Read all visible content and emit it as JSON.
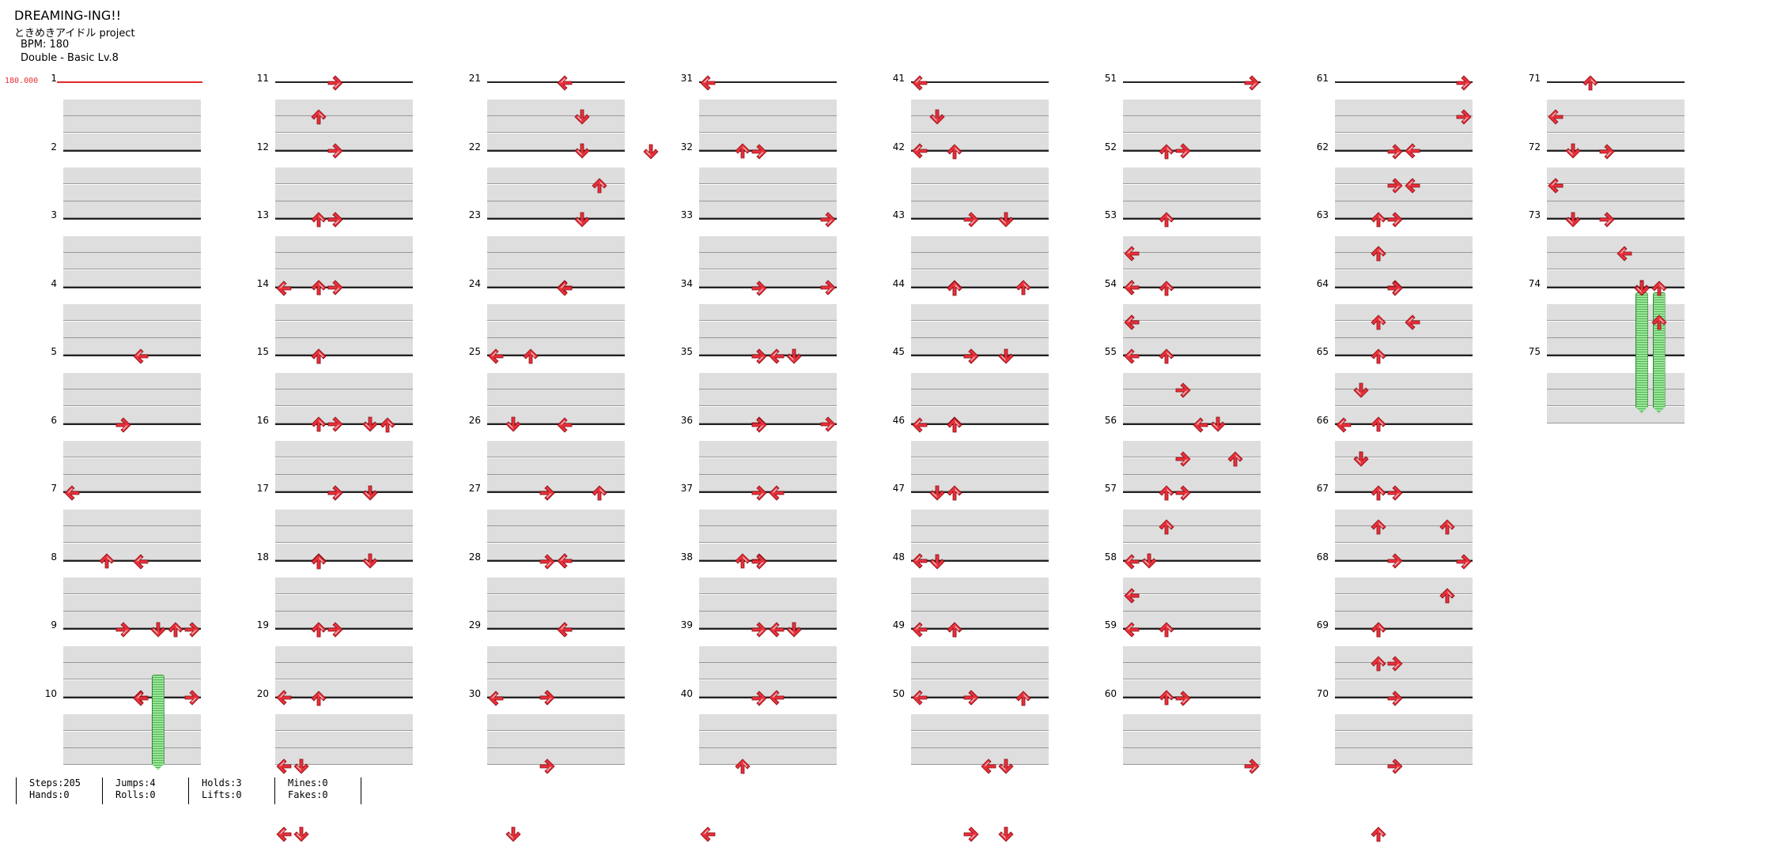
{
  "song": {
    "title": "DREAMING-ING!!",
    "artist": "ときめきアイドル project",
    "bpm_label": "BPM: 180",
    "chart_label": "Double - Basic  Lv.8",
    "bpm_marker": "180.000"
  },
  "colors": {
    "arrow": "#e8303a",
    "hold": "#9ae89a"
  },
  "measure_count": 75,
  "steps": [
    [
      11,
      0,
      3
    ],
    [
      11,
      2,
      2
    ],
    [
      11,
      4,
      3
    ],
    [
      11,
      8,
      2
    ],
    [
      11,
      8,
      3
    ],
    [
      11,
      12,
      2
    ],
    [
      11,
      12,
      3
    ],
    [
      21,
      0,
      4
    ],
    [
      21,
      2,
      5
    ],
    [
      21,
      4,
      5
    ],
    [
      21,
      6,
      6
    ],
    [
      22,
      0,
      9
    ],
    [
      31,
      0,
      0
    ],
    [
      31,
      4,
      2
    ],
    [
      32,
      0,
      3
    ],
    [
      32,
      12,
      4
    ],
    [
      33,
      0,
      7
    ],
    [
      33,
      4,
      7
    ],
    [
      33,
      8,
      3
    ],
    [
      34,
      0,
      3
    ],
    [
      34,
      4,
      3
    ],
    [
      34,
      8,
      7
    ],
    [
      41,
      0,
      0
    ],
    [
      41,
      2,
      1
    ],
    [
      41,
      4,
      0
    ],
    [
      42,
      0,
      2
    ],
    [
      42,
      4,
      3
    ],
    [
      42,
      8,
      2
    ],
    [
      43,
      0,
      5
    ],
    [
      43,
      4,
      6
    ],
    [
      43,
      8,
      5
    ],
    [
      44,
      0,
      2
    ],
    [
      44,
      4,
      3
    ],
    [
      44,
      8,
      2
    ],
    [
      45,
      0,
      3
    ],
    [
      45,
      4,
      2
    ],
    [
      45,
      8,
      1
    ],
    [
      45,
      12,
      0
    ],
    [
      46,
      0,
      0
    ],
    [
      46,
      0,
      2
    ],
    [
      47,
      0,
      2
    ],
    [
      47,
      4,
      0
    ],
    [
      47,
      8,
      0
    ],
    [
      47,
      12,
      0
    ],
    [
      48,
      0,
      1
    ],
    [
      48,
      4,
      2
    ],
    [
      48,
      8,
      3
    ],
    [
      49,
      0,
      2
    ],
    [
      49,
      4,
      3
    ],
    [
      49,
      8,
      4
    ],
    [
      49,
      12,
      5
    ],
    [
      50,
      0,
      6
    ],
    [
      50,
      4,
      5
    ],
    [
      50,
      8,
      3
    ],
    [
      51,
      0,
      7
    ],
    [
      51,
      4,
      3
    ],
    [
      52,
      0,
      2
    ],
    [
      52,
      8,
      0
    ],
    [
      53,
      0,
      2
    ],
    [
      53,
      2,
      0
    ],
    [
      53,
      4,
      0
    ],
    [
      53,
      6,
      0
    ],
    [
      54,
      0,
      2
    ],
    [
      54,
      2,
      0
    ],
    [
      54,
      4,
      0
    ],
    [
      55,
      0,
      2
    ],
    [
      55,
      2,
      3
    ],
    [
      55,
      4,
      5
    ],
    [
      55,
      6,
      6
    ],
    [
      56,
      0,
      4
    ],
    [
      56,
      2,
      3
    ],
    [
      56,
      4,
      2
    ],
    [
      57,
      0,
      3
    ],
    [
      57,
      2,
      2
    ],
    [
      57,
      4,
      1
    ],
    [
      57,
      6,
      0
    ],
    [
      58,
      0,
      0
    ],
    [
      58,
      2,
      0
    ],
    [
      58,
      4,
      2
    ],
    [
      59,
      0,
      0
    ],
    [
      59,
      4,
      2
    ],
    [
      60,
      0,
      3
    ],
    [
      60,
      4,
      7
    ],
    [
      61,
      0,
      7
    ],
    [
      61,
      2,
      7
    ],
    [
      61,
      4,
      4
    ],
    [
      61,
      6,
      4
    ],
    [
      62,
      0,
      3
    ],
    [
      62,
      2,
      3
    ],
    [
      62,
      4,
      2
    ],
    [
      62,
      6,
      2
    ],
    [
      63,
      0,
      3
    ],
    [
      63,
      2,
      2
    ],
    [
      63,
      4,
      3
    ],
    [
      63,
      6,
      4
    ],
    [
      64,
      0,
      3
    ],
    [
      64,
      2,
      2
    ],
    [
      65,
      0,
      2
    ],
    [
      65,
      2,
      1
    ],
    [
      65,
      4,
      2
    ],
    [
      65,
      6,
      1
    ],
    [
      66,
      0,
      0
    ],
    [
      66,
      2,
      1
    ],
    [
      66,
      4,
      3
    ],
    [
      66,
      6,
      2
    ],
    [
      67,
      0,
      2
    ],
    [
      67,
      2,
      6
    ],
    [
      67,
      4,
      3
    ],
    [
      67,
      6,
      6
    ],
    [
      68,
      0,
      7
    ],
    [
      68,
      2,
      6
    ],
    [
      68,
      4,
      2
    ],
    [
      68,
      6,
      3
    ],
    [
      69,
      0,
      2
    ],
    [
      69,
      2,
      2
    ],
    [
      70,
      0,
      3
    ],
    [
      70,
      4,
      3
    ],
    [
      70,
      8,
      2
    ],
    [
      71,
      0,
      2
    ],
    [
      71,
      2,
      0
    ],
    [
      71,
      4,
      1
    ],
    [
      71,
      6,
      0
    ],
    [
      72,
      0,
      3
    ],
    [
      72,
      2,
      0
    ],
    [
      72,
      4,
      1
    ],
    [
      73,
      0,
      3
    ],
    [
      73,
      2,
      4
    ],
    [
      73,
      4,
      5
    ],
    [
      73,
      6,
      6
    ],
    [
      5,
      0,
      4
    ],
    [
      6,
      0,
      3
    ],
    [
      7,
      0,
      0
    ],
    [
      7,
      4,
      2
    ],
    [
      7,
      8,
      3
    ],
    [
      8,
      0,
      4
    ],
    [
      8,
      4,
      6
    ],
    [
      8,
      8,
      7
    ],
    [
      9,
      0,
      7
    ],
    [
      9,
      4,
      4
    ],
    [
      10,
      0,
      4
    ],
    [
      10,
      -4,
      5
    ],
    [
      13,
      0,
      3
    ],
    [
      13,
      4,
      2
    ],
    [
      13,
      8,
      2
    ],
    [
      13,
      12,
      2
    ],
    [
      14,
      0,
      0
    ],
    [
      14,
      4,
      2
    ],
    [
      14,
      8,
      3
    ],
    [
      15,
      0,
      2
    ],
    [
      15,
      4,
      5
    ],
    [
      15,
      8,
      3
    ],
    [
      15,
      12,
      5
    ],
    [
      16,
      0,
      6
    ],
    [
      16,
      4,
      5
    ],
    [
      16,
      8,
      2
    ],
    [
      17,
      0,
      3
    ],
    [
      17,
      4,
      2
    ],
    [
      17,
      8,
      3
    ],
    [
      18,
      0,
      2
    ],
    [
      18,
      4,
      2
    ],
    [
      19,
      0,
      2
    ],
    [
      19,
      4,
      0
    ],
    [
      19,
      8,
      1
    ],
    [
      19,
      12,
      0
    ],
    [
      20,
      0,
      2
    ],
    [
      20,
      4,
      0
    ],
    [
      20,
      8,
      1
    ],
    [
      23,
      0,
      5
    ],
    [
      23,
      4,
      4
    ],
    [
      24,
      0,
      4
    ],
    [
      24,
      4,
      2
    ],
    [
      25,
      0,
      0
    ],
    [
      25,
      4,
      1
    ],
    [
      25,
      8,
      3
    ],
    [
      26,
      0,
      4
    ],
    [
      26,
      4,
      6
    ],
    [
      26,
      8,
      4
    ],
    [
      27,
      0,
      3
    ],
    [
      27,
      4,
      4
    ],
    [
      28,
      0,
      3
    ],
    [
      28,
      4,
      4
    ],
    [
      28,
      8,
      3
    ],
    [
      29,
      0,
      4
    ],
    [
      29,
      4,
      3
    ],
    [
      29,
      8,
      3
    ],
    [
      29,
      12,
      1
    ],
    [
      30,
      0,
      0
    ],
    [
      35,
      0,
      5
    ],
    [
      35,
      4,
      3
    ],
    [
      36,
      0,
      3
    ],
    [
      36,
      4,
      4
    ],
    [
      36,
      8,
      3
    ],
    [
      36,
      12,
      4
    ],
    [
      37,
      0,
      3
    ],
    [
      37,
      4,
      2
    ],
    [
      38,
      0,
      3
    ],
    [
      38,
      4,
      5
    ],
    [
      39,
      0,
      3
    ],
    [
      39,
      4,
      4
    ],
    [
      40,
      0,
      3
    ],
    [
      40,
      4,
      2
    ],
    [
      40,
      8,
      0
    ],
    [
      74,
      0,
      5
    ],
    [
      74,
      0,
      6
    ]
  ],
  "holds": [
    {
      "measure": 9,
      "beat": 2.4,
      "lane": 5,
      "length": 5.6
    },
    {
      "measure": 74,
      "beat": 0,
      "lane": 5,
      "length": 7.1
    },
    {
      "measure": 74,
      "beat": 0,
      "lane": 6,
      "length": 7.1
    }
  ],
  "stats": {
    "steps": "Steps:205",
    "hands": "Hands:0",
    "jumps": "Jumps:4",
    "rolls": "Rolls:0",
    "holds": "Holds:3",
    "lifts": "Lifts:0",
    "mines": "Mines:0",
    "fakes": "Fakes:0"
  }
}
